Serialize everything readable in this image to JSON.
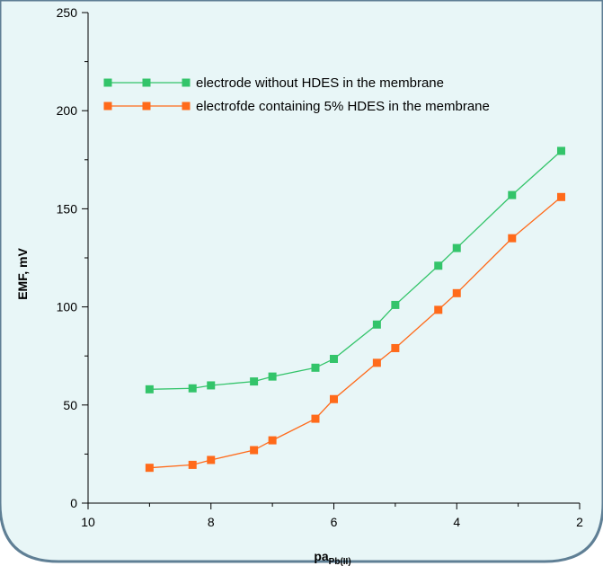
{
  "chart_data": {
    "type": "line",
    "xlabel_main": "pa",
    "xlabel_sub": "Pb(II)",
    "ylabel": "EMF, mV",
    "xlim": [
      10,
      2
    ],
    "ylim": [
      0,
      250
    ],
    "x_ticks": [
      10,
      8,
      6,
      4,
      2
    ],
    "y_ticks": [
      0,
      50,
      100,
      150,
      200,
      250
    ],
    "legend_position": "top-left",
    "grid": false,
    "colors": {
      "background_panel": "#e8f6f7",
      "panel_border": "#5f7f95"
    },
    "series": [
      {
        "name": "electrode without HDES in the membrane",
        "color": "#33c46a",
        "x": [
          9.0,
          8.3,
          8.0,
          7.3,
          7.0,
          6.3,
          6.0,
          5.3,
          5.0,
          4.3,
          4.0,
          3.1,
          2.3
        ],
        "y": [
          58,
          58.5,
          60,
          62,
          64.5,
          69,
          73.5,
          91,
          101,
          121,
          130,
          157,
          179.5
        ]
      },
      {
        "name": "electrofde containing 5% HDES in the membrane",
        "color": "#ff6a1a",
        "x": [
          9.0,
          8.3,
          8.0,
          7.3,
          7.0,
          6.3,
          6.0,
          5.3,
          5.0,
          4.3,
          4.0,
          3.1,
          2.3
        ],
        "y": [
          18,
          19.5,
          22,
          27,
          32,
          43,
          53,
          71.5,
          79,
          98.5,
          107,
          135,
          156
        ]
      }
    ]
  }
}
